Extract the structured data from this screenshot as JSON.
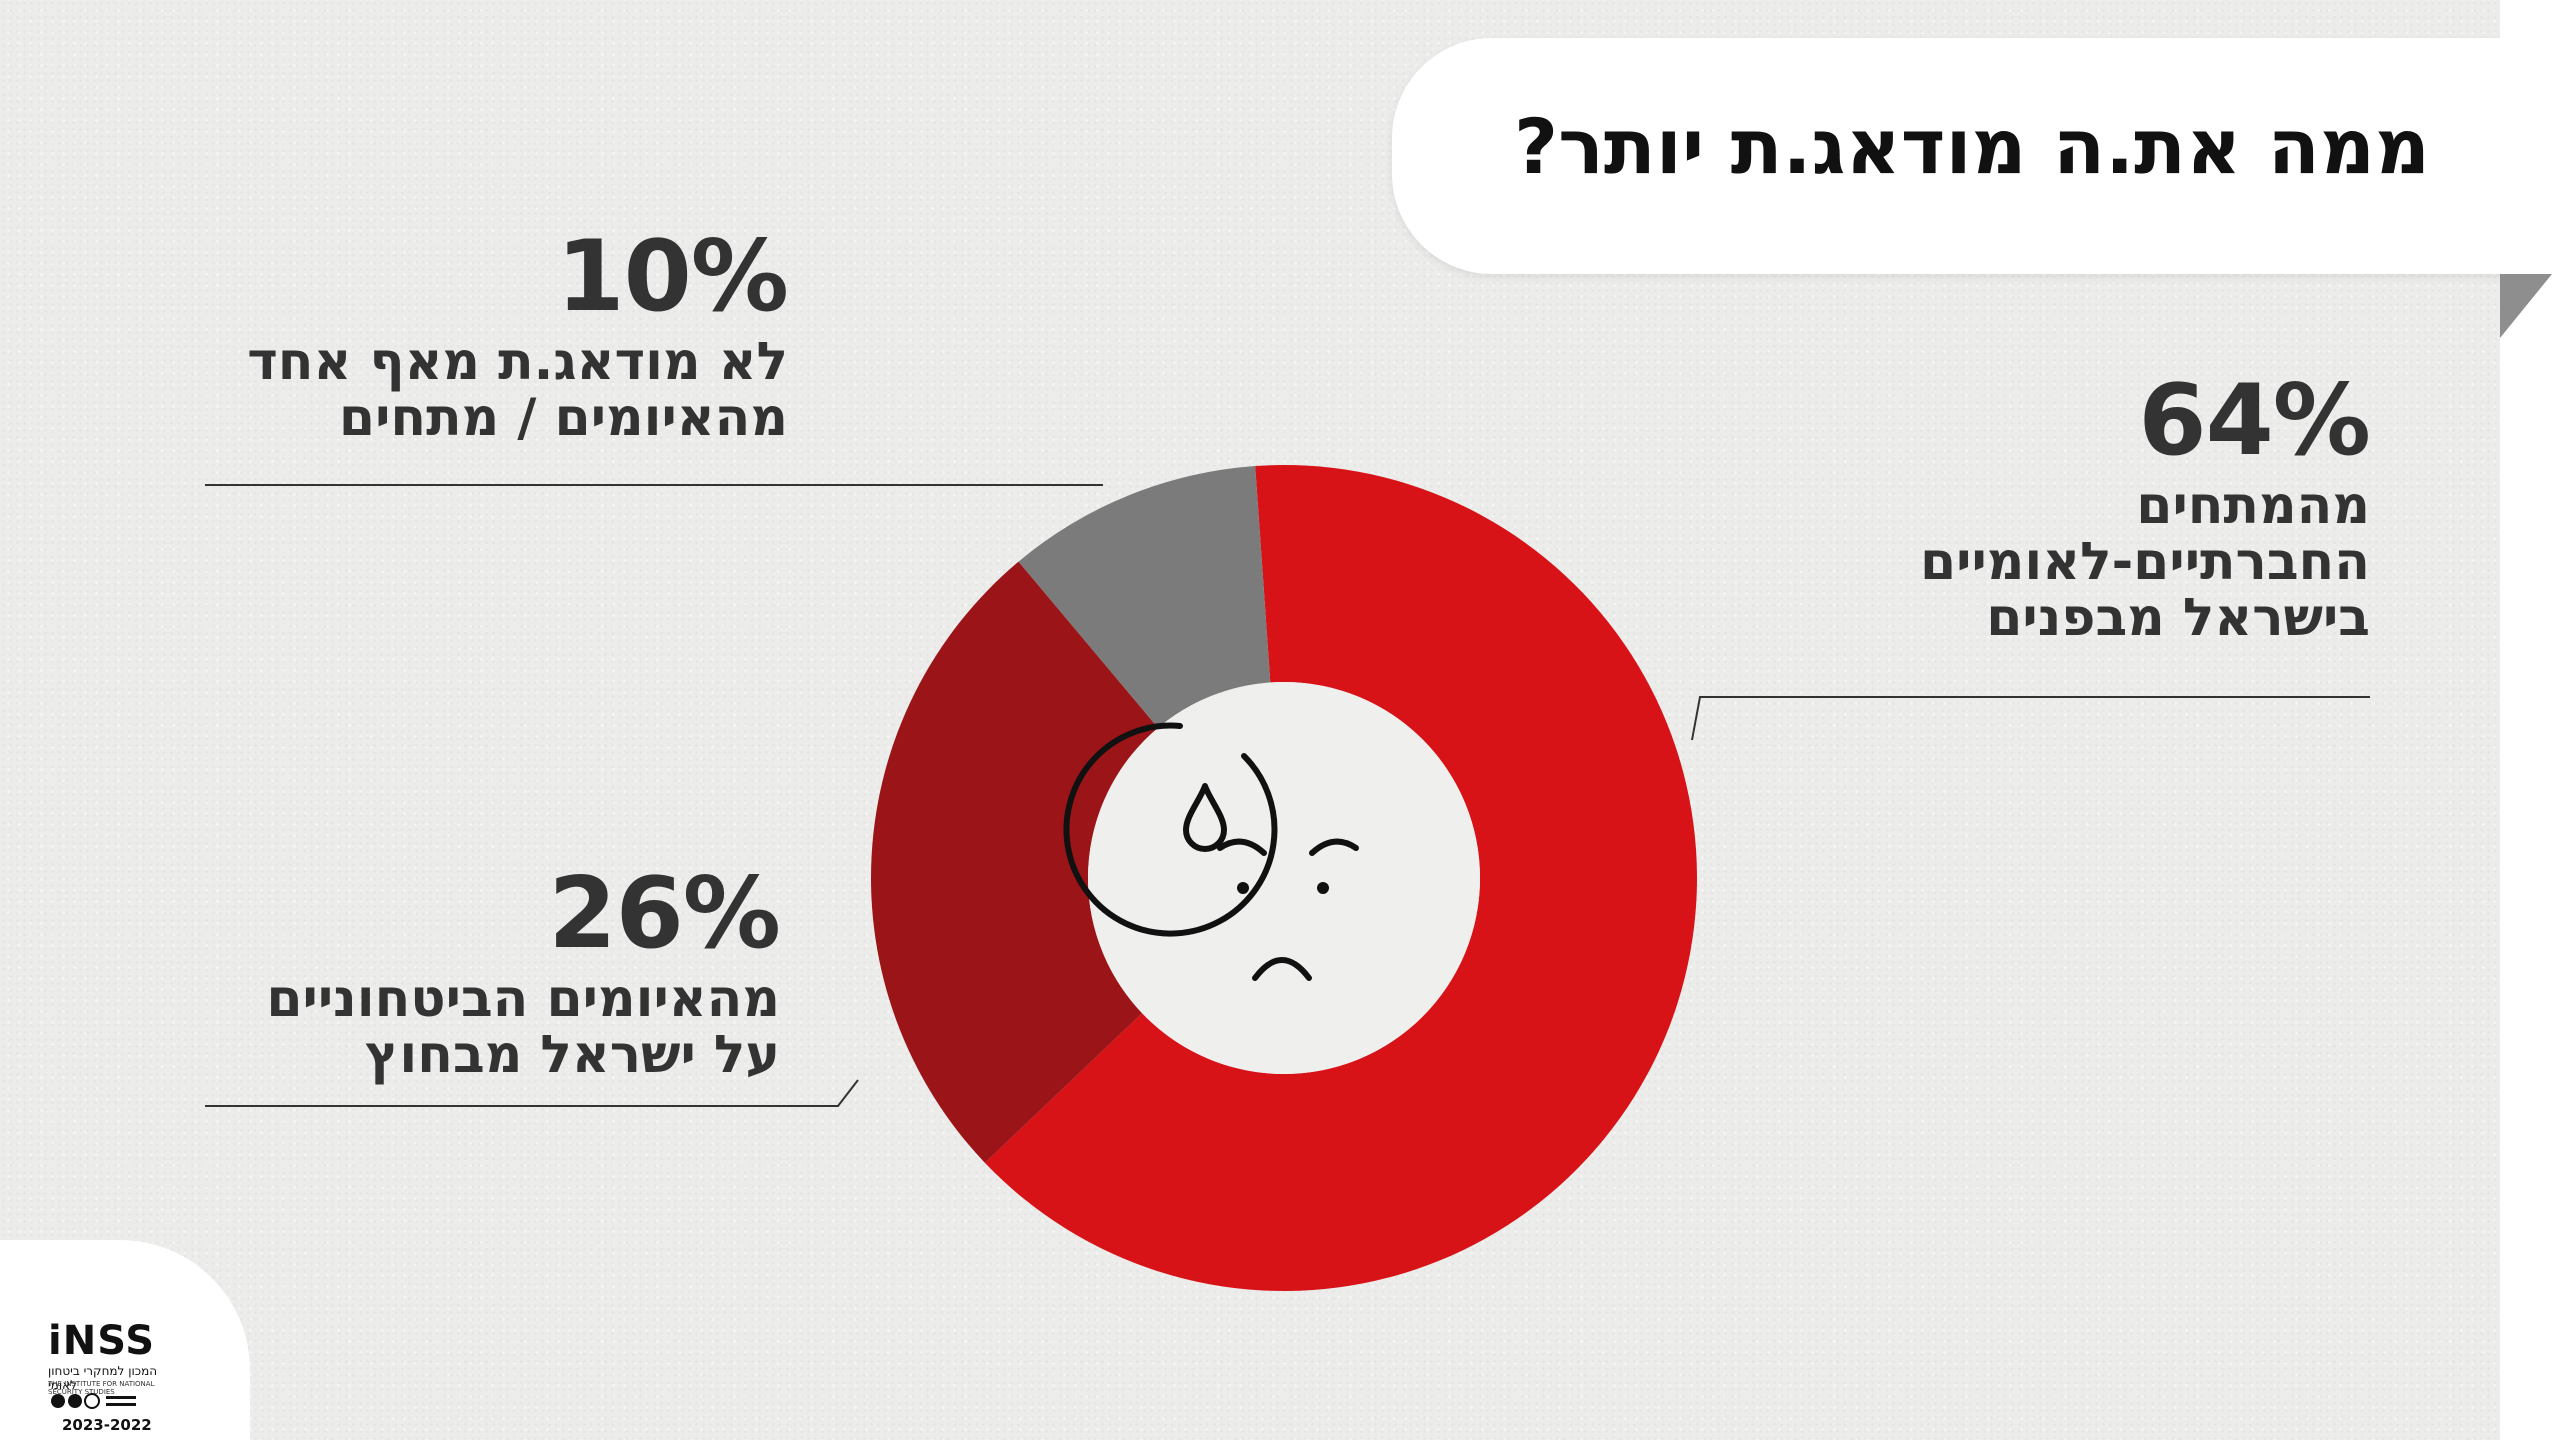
{
  "title": "ממה את.ה מודאג.ת יותר?",
  "chart_data": {
    "type": "pie",
    "style": "donut",
    "start_angle_deg": -4,
    "slices": [
      {
        "label": "מהמתחים החברתיים-לאומיים בישראל מבפנים",
        "value": 64,
        "color": "#d71318"
      },
      {
        "label": "מהאיומים הביטחוניים על ישראל מבחוץ",
        "value": 26,
        "color": "#9b1518"
      },
      {
        "label": "לא מודאג.ת מאף אחד מהאיומים / מתחים",
        "value": 10,
        "color": "#7b7b7b"
      }
    ]
  },
  "labels": {
    "internal": {
      "pct": "64%",
      "lines": [
        "מהמתחים",
        "החברתיים-לאומיים",
        "בישראל מבפנים"
      ]
    },
    "external": {
      "pct": "26%",
      "lines": [
        "מהאיומים הביטחוניים",
        "על ישראל מבחוץ"
      ]
    },
    "none": {
      "pct": "10%",
      "lines": [
        "לא מודאג.ת מאף אחד",
        "מהאיומים / מתחים"
      ]
    }
  },
  "center_icon": "worried-sweat-face-icon",
  "logo": {
    "word": "iNSS",
    "subtitle": "המכון למחקרי ביטחון לאומי",
    "english": "THE INSTITUTE FOR NATIONAL SECURITY STUDIES",
    "years": "2023-2022"
  }
}
